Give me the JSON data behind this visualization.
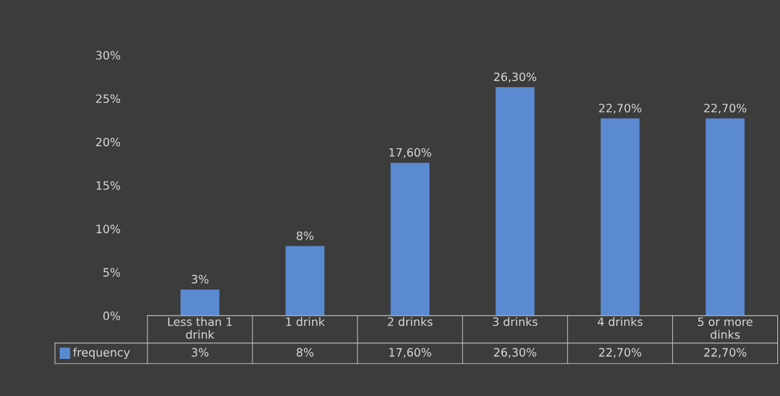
{
  "chart_data": {
    "type": "bar",
    "categories": [
      "Less than 1 drink",
      "1 drink",
      "2 drinks",
      "3 drinks",
      "4 drinks",
      "5 or more dinks"
    ],
    "series": [
      {
        "name": "frequency",
        "color": "#5a8ad0",
        "values": [
          3,
          8,
          17.6,
          26.3,
          22.7,
          22.7
        ],
        "value_labels": [
          "3%",
          "8%",
          "17,60%",
          "26,30%",
          "22,70%",
          "22,70%"
        ]
      }
    ],
    "ylim": [
      0,
      30
    ],
    "yticks": [
      {
        "value": 0,
        "label": "0%"
      },
      {
        "value": 5,
        "label": "5%"
      },
      {
        "value": 10,
        "label": "10%"
      },
      {
        "value": 15,
        "label": "15%"
      },
      {
        "value": 20,
        "label": "20%"
      },
      {
        "value": 25,
        "label": "25%"
      },
      {
        "value": 30,
        "label": "30%"
      }
    ],
    "grid": false,
    "legend": "bottom"
  }
}
